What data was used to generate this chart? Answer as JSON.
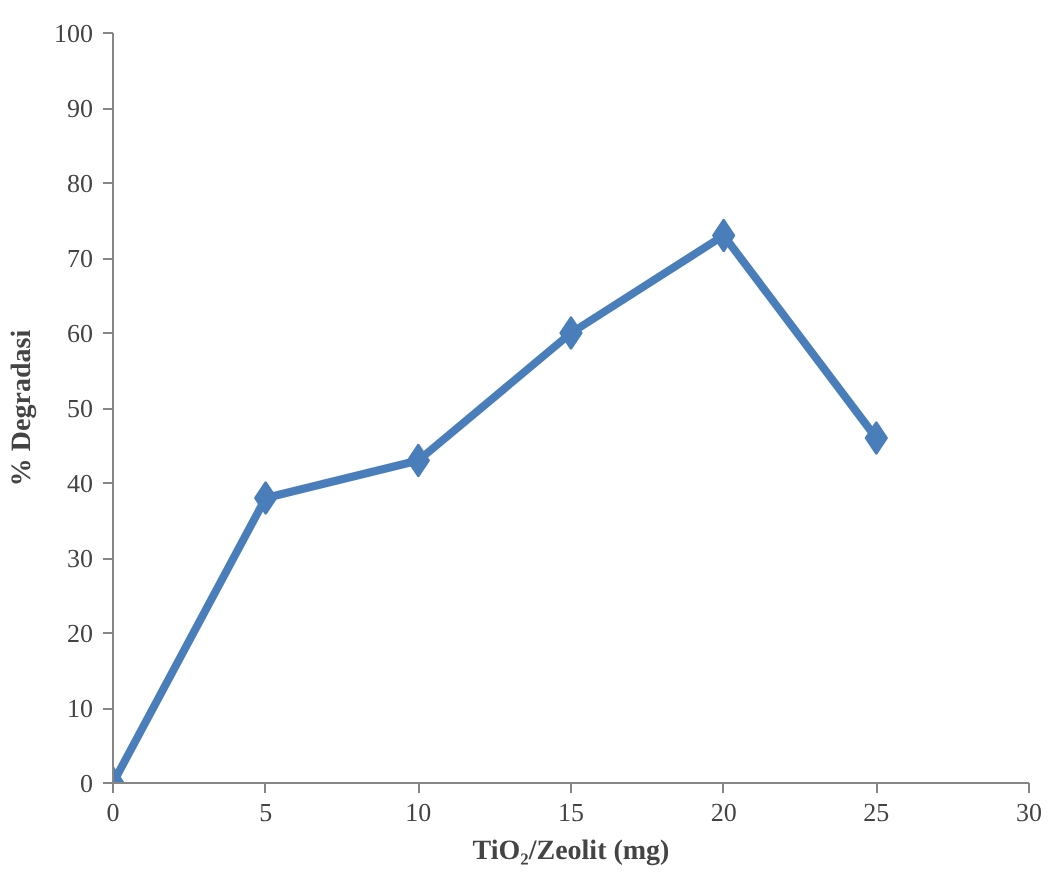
{
  "chart_data": {
    "type": "line",
    "xlabel": "TiO₂/Zeolit (mg)",
    "ylabel": "% Degradasi",
    "x": [
      0,
      5,
      10,
      15,
      20,
      25
    ],
    "series": [
      {
        "color": "#4a7ebb",
        "values": [
          0,
          38,
          43,
          60,
          73,
          46
        ]
      }
    ],
    "xlim": [
      0,
      30
    ],
    "xticks": [
      0,
      5,
      10,
      15,
      20,
      25,
      30
    ],
    "ylim": [
      0,
      100
    ],
    "yticks": [
      0,
      10,
      20,
      30,
      40,
      50,
      60,
      70,
      80,
      90,
      100
    ],
    "grid": false,
    "marker": "diamond",
    "line_style": "solid"
  }
}
